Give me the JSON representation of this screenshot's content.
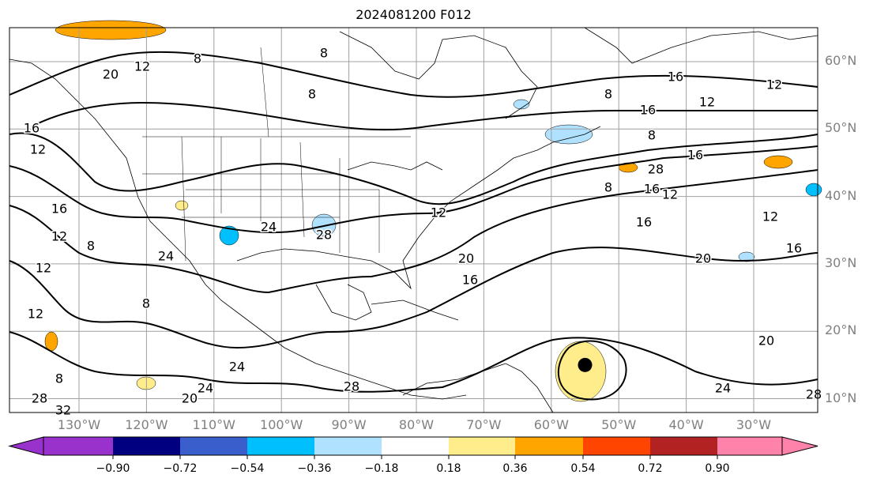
{
  "title": "2024081200 F012",
  "lat_labels": [
    "60°N",
    "50°N",
    "40°N",
    "30°N",
    "20°N",
    "10°N"
  ],
  "lon_labels": [
    "130°W",
    "120°W",
    "110°W",
    "100°W",
    "90°W",
    "80°W",
    "70°W",
    "60°W",
    "50°W",
    "40°W",
    "30°W"
  ],
  "contour_labels": [
    "12",
    "20",
    "16",
    "12",
    "8",
    "8",
    "8",
    "16",
    "12",
    "8",
    "12",
    "16",
    "8",
    "12",
    "16",
    "12",
    "28",
    "16",
    "16",
    "8",
    "12",
    "16",
    "20",
    "24",
    "28",
    "12",
    "16",
    "20",
    "24",
    "8",
    "28",
    "24",
    "28",
    "24",
    "20",
    "32",
    "16",
    "20",
    "24",
    "28",
    "8",
    "8",
    "12",
    "12"
  ],
  "storm_marker": {
    "lon": -55,
    "lat": 15
  },
  "colorbar": {
    "colors": [
      "#9932cc",
      "#000080",
      "#3a5fcd",
      "#00bfff",
      "#b0e2ff",
      "#ffffff",
      "#ffec8b",
      "#ffa500",
      "#ff4500",
      "#b22222",
      "#ff82ab"
    ],
    "ticks": [
      "−0.90",
      "−0.72",
      "−0.54",
      "−0.36",
      "−0.18",
      "0.18",
      "0.36",
      "0.54",
      "0.72",
      "0.90"
    ]
  }
}
